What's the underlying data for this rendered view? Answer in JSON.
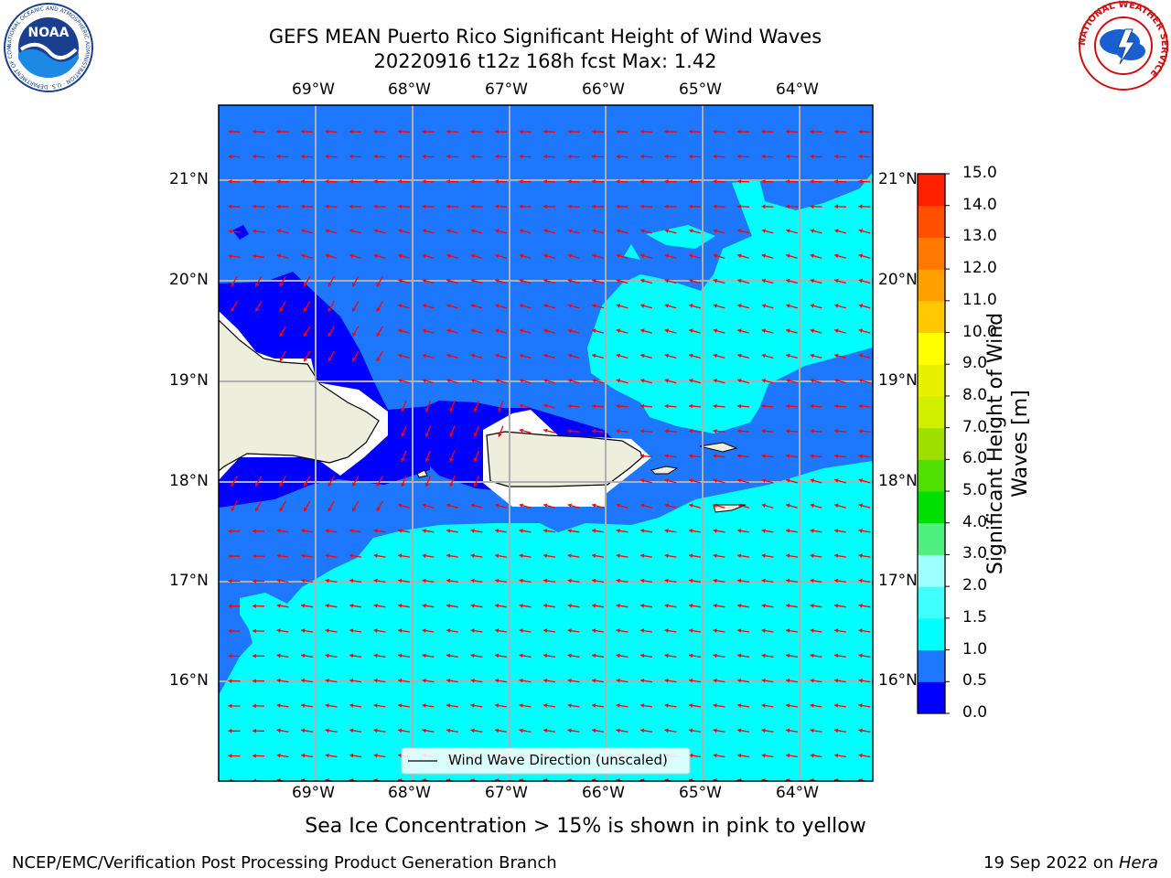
{
  "header": {
    "title_line1": "GEFS MEAN Puerto Rico Significant Height of Wind Waves",
    "title_line2": "20220916 t12z 168h fcst   Max: 1.42"
  },
  "logos": {
    "left": {
      "text": "NOAA",
      "ring_text": "NATIONAL OCEANIC AND ATMOSPHERIC ADMINISTRATION · U.S. DEPARTMENT OF COMMERCE"
    },
    "right": {
      "ring_text": "NATIONAL WEATHER SERVICE"
    }
  },
  "map": {
    "lon_labels": [
      "69°W",
      "68°W",
      "67°W",
      "66°W",
      "65°W",
      "64°W"
    ],
    "lat_labels": [
      "21°N",
      "20°N",
      "19°N",
      "18°N",
      "17°N",
      "16°N"
    ],
    "legend_label": "Wind Wave Direction (unscaled)",
    "colors": {
      "land": "#eeeedd",
      "cat0": "#0000ff",
      "cat05": "#1e78ff",
      "cat1": "#00ffff",
      "arrow": "#ff0000"
    }
  },
  "colorbar": {
    "label": "Significant Height of Wind Waves [m]",
    "label_line1": "Significant Height of Wind",
    "label_line2": "Waves [m]",
    "ticks": [
      "0.0",
      "0.5",
      "1.0",
      "1.5",
      "2.0",
      "3.0",
      "4.0",
      "5.0",
      "6.0",
      "7.0",
      "8.0",
      "9.0",
      "10.0",
      "11.0",
      "12.0",
      "13.0",
      "14.0",
      "15.0"
    ],
    "colors": [
      "#0000ff",
      "#1e78ff",
      "#00ffff",
      "#40ffff",
      "#a0ffff",
      "#50f080",
      "#00e000",
      "#50e000",
      "#a0e000",
      "#d0f000",
      "#e8f000",
      "#ffff00",
      "#ffc800",
      "#ffa000",
      "#ff7800",
      "#ff5000",
      "#ff2000"
    ]
  },
  "notes": {
    "sea_ice": "Sea Ice Concentration > 15% is shown in pink to yellow"
  },
  "footer": {
    "left": "NCEP/EMC/Verification Post Processing Product Generation Branch",
    "right_prefix": "19 Sep 2022 on ",
    "right_machine": "Hera"
  }
}
